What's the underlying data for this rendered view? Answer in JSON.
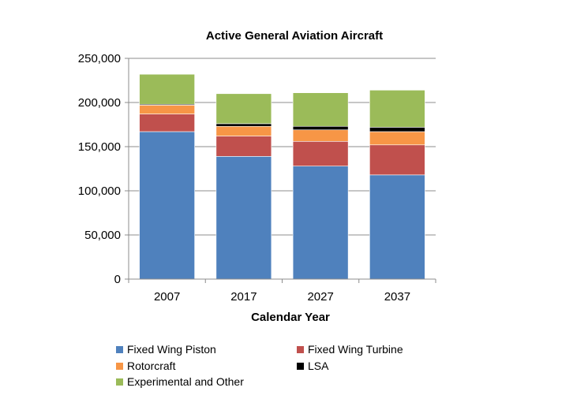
{
  "chart_data": {
    "type": "bar",
    "stacked": true,
    "title": "Active General Aviation Aircraft",
    "xlabel": "Calendar Year",
    "ylabel": "",
    "categories": [
      "2007",
      "2017",
      "2027",
      "2037"
    ],
    "ylim": [
      0,
      250000
    ],
    "yticks": [
      0,
      50000,
      100000,
      150000,
      200000,
      250000
    ],
    "ytick_labels": [
      "0",
      "50,000",
      "100,000",
      "150,000",
      "200,000",
      "250,000"
    ],
    "grid": true,
    "legend_position": "bottom",
    "series": [
      {
        "name": "Fixed Wing Piston",
        "color": "#4F81BD",
        "values": [
          167000,
          139000,
          128000,
          118000
        ]
      },
      {
        "name": "Fixed Wing Turbine",
        "color": "#C0504D",
        "values": [
          20000,
          23000,
          28000,
          34000
        ]
      },
      {
        "name": "Rotorcraft",
        "color": "#F79646",
        "values": [
          10000,
          11000,
          13000,
          15000
        ]
      },
      {
        "name": "LSA",
        "color": "#000000",
        "values": [
          1000,
          3000,
          4000,
          5000
        ]
      },
      {
        "name": "Experimental and Other",
        "color": "#9BBB59",
        "values": [
          34000,
          34000,
          38000,
          42000
        ]
      }
    ]
  }
}
